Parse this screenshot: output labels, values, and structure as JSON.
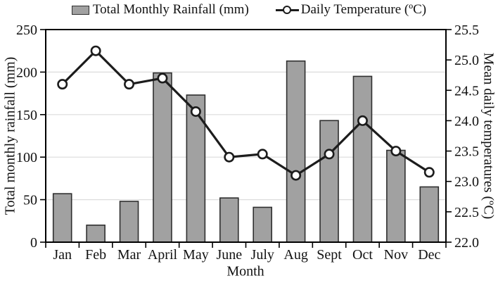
{
  "chart_data": {
    "type": "combo-bar-line",
    "title": "",
    "categories": [
      "Jan",
      "Feb",
      "Mar",
      "April",
      "May",
      "June",
      "July",
      "Aug",
      "Sept",
      "Oct",
      "Nov",
      "Dec"
    ],
    "series": [
      {
        "name": "Total Monthly Rainfall (mm)",
        "type": "bar",
        "axis": "left",
        "values": [
          57,
          20,
          48,
          199,
          173,
          52,
          41,
          213,
          143,
          195,
          108,
          65
        ]
      },
      {
        "name": "Daily Temperature (ºC)",
        "type": "line",
        "axis": "right",
        "marker": "open-circle",
        "values": [
          24.6,
          25.15,
          24.6,
          24.7,
          24.15,
          23.4,
          23.45,
          23.1,
          23.45,
          24.0,
          23.5,
          23.15
        ]
      }
    ],
    "x_axis": {
      "label": "Month"
    },
    "y_left": {
      "label": "Total monthly rainfall (mm)",
      "min": 0,
      "max": 250,
      "step": 50,
      "ticks": [
        "0",
        "50",
        "100",
        "150",
        "200",
        "250"
      ]
    },
    "y_right": {
      "label": "Mean daily temperatures (ºC)",
      "min": 22.0,
      "max": 25.5,
      "step": 0.5,
      "ticks": [
        "22.0",
        "22.5",
        "23.0",
        "23.5",
        "24.0",
        "24.5",
        "25.0",
        "25.5"
      ]
    },
    "grid": "horizontal",
    "legend_position": "top",
    "colors": {
      "bar_fill": "#a1a1a1",
      "bar_border": "#2f2f2f",
      "line": "#1c1c1c",
      "marker_fill": "#ffffff",
      "grid": "#dcdcdc",
      "axis": "#000000"
    }
  }
}
